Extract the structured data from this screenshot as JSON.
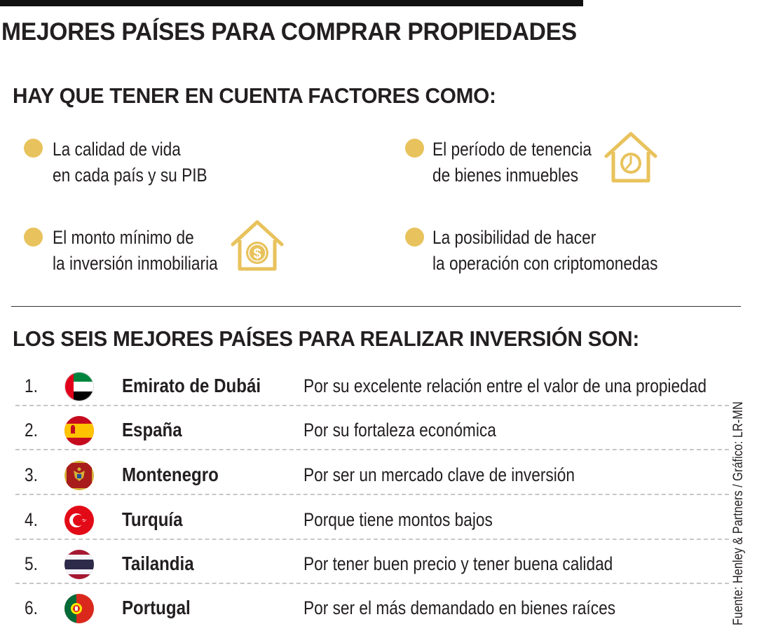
{
  "title": "MEJORES PAÍSES PARA COMPRAR PROPIEDADES",
  "factors_heading": "HAY QUE TENER EN CUENTA FACTORES COMO:",
  "factors": [
    {
      "line1": "La calidad de vida",
      "line2": "en cada país y su PIB"
    },
    {
      "line1": "El período de tenencia",
      "line2": "de bienes inmuebles",
      "icon": "house-clock-icon"
    },
    {
      "line1": "El monto mínimo de",
      "line2": "la inversión inmobiliaria",
      "icon": "house-dollar-icon"
    },
    {
      "line1": "La posibilidad de hacer",
      "line2": "la operación con criptomonedas"
    }
  ],
  "ranking_heading": "LOS SEIS MEJORES PAÍSES PARA REALIZAR INVERSIÓN SON:",
  "countries": [
    {
      "rank": "1.",
      "name": "Emirato de Dubái",
      "reason": "Por su excelente relación entre el valor de una propiedad",
      "flag": "uae-flag-icon"
    },
    {
      "rank": "2.",
      "name": "España",
      "reason": "Por su fortaleza económica",
      "flag": "spain-flag-icon"
    },
    {
      "rank": "3.",
      "name": "Montenegro",
      "reason": "Por ser un mercado clave de inversión",
      "flag": "montenegro-flag-icon"
    },
    {
      "rank": "4.",
      "name": "Turquía",
      "reason": "Porque tiene montos bajos",
      "flag": "turkey-flag-icon"
    },
    {
      "rank": "5.",
      "name": "Tailandia",
      "reason": "Por tener buen precio y tener buena calidad",
      "flag": "thailand-flag-icon"
    },
    {
      "rank": "6.",
      "name": "Portugal",
      "reason": "Por ser el más demandado en bienes raíces",
      "flag": "portugal-flag-icon"
    }
  ],
  "source": "Fuente: Henley & Partners / Gráfico: LR-MN",
  "colors": {
    "accent": "#e8c25c",
    "text": "#231f20",
    "rule": "#111111",
    "dashed": "#c7c7c7"
  }
}
